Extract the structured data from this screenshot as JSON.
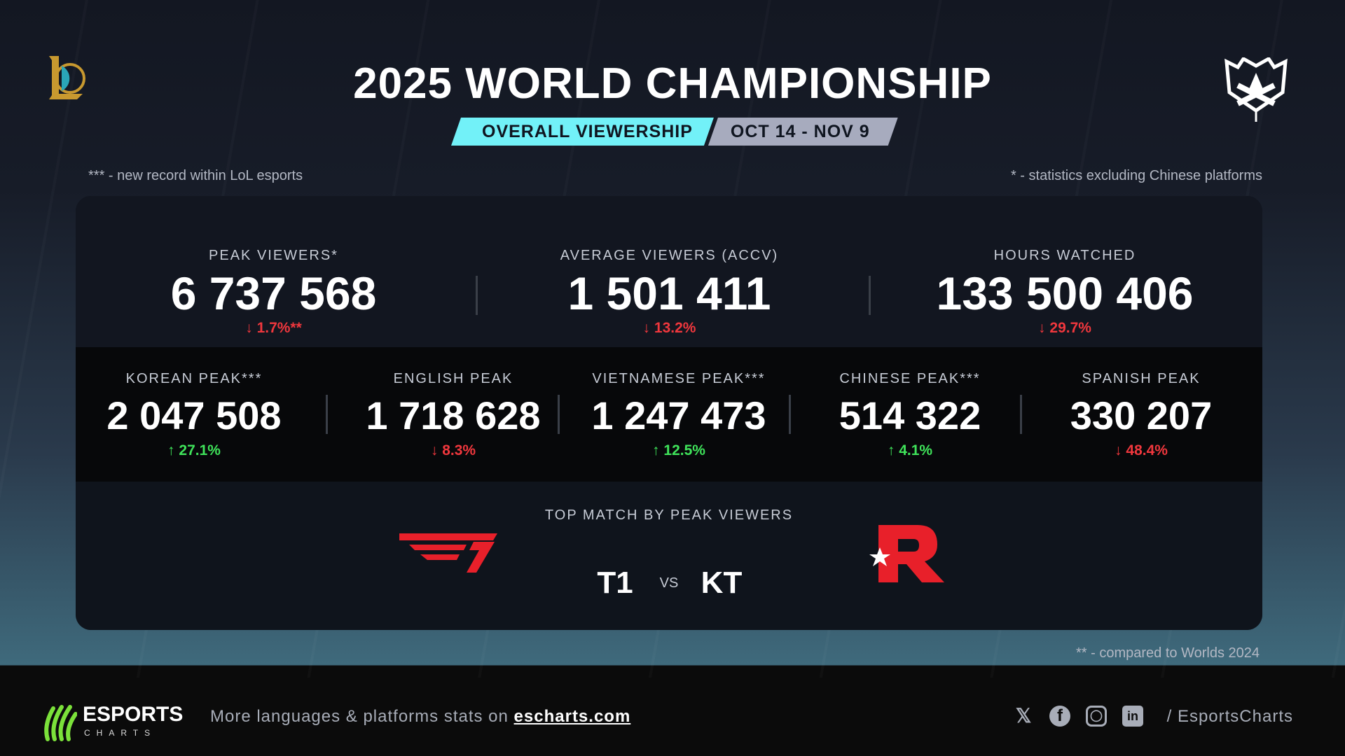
{
  "header": {
    "title": "2025 WORLD CHAMPIONSHIP",
    "badge_primary": "OVERALL VIEWERSHIP",
    "badge_dates": "OCT 14 - NOV 9"
  },
  "notes": {
    "left": "*** - new record within LoL esports",
    "right": "* - statistics excluding Chinese platforms",
    "bottom": "** - compared to Worlds 2024"
  },
  "top_stats": [
    {
      "label": "PEAK VIEWERS*",
      "value": "6 737 568",
      "change": "1.7%**",
      "direction": "down"
    },
    {
      "label": "AVERAGE VIEWERS (ACCV)",
      "value": "1 501 411",
      "change": "13.2%",
      "direction": "down"
    },
    {
      "label": "HOURS WATCHED",
      "value": "133 500 406",
      "change": "29.7%",
      "direction": "down"
    }
  ],
  "language_stats": [
    {
      "label": "KOREAN PEAK***",
      "value": "2 047 508",
      "change": "27.1%",
      "direction": "up"
    },
    {
      "label": "ENGLISH PEAK",
      "value": "1 718 628",
      "change": "8.3%",
      "direction": "down"
    },
    {
      "label": "VIETNAMESE PEAK***",
      "value": "1 247 473",
      "change": "12.5%",
      "direction": "up"
    },
    {
      "label": "CHINESE PEAK***",
      "value": "514 322",
      "change": "4.1%",
      "direction": "up"
    },
    {
      "label": "SPANISH PEAK",
      "value": "330 207",
      "change": "48.4%",
      "direction": "down"
    }
  ],
  "top_match": {
    "label": "TOP MATCH BY PEAK VIEWERS",
    "team1": "T1",
    "vs": "VS",
    "team2": "KT",
    "team1_logo_text": "T1",
    "team2_logo_text": "R"
  },
  "footer": {
    "brand": "ESPORTS",
    "brand_sub": "CHARTS",
    "text": "More languages & platforms stats on ",
    "link": "escharts.com",
    "handle": "/ EsportsCharts",
    "social_icons": [
      "x-icon",
      "facebook-icon",
      "instagram-icon",
      "linkedin-icon"
    ]
  },
  "colors": {
    "accent": "#72f1f8",
    "up": "#3fe35a",
    "down": "#f0373d",
    "brand_green": "#7be13a",
    "team_red": "#e8202a"
  }
}
